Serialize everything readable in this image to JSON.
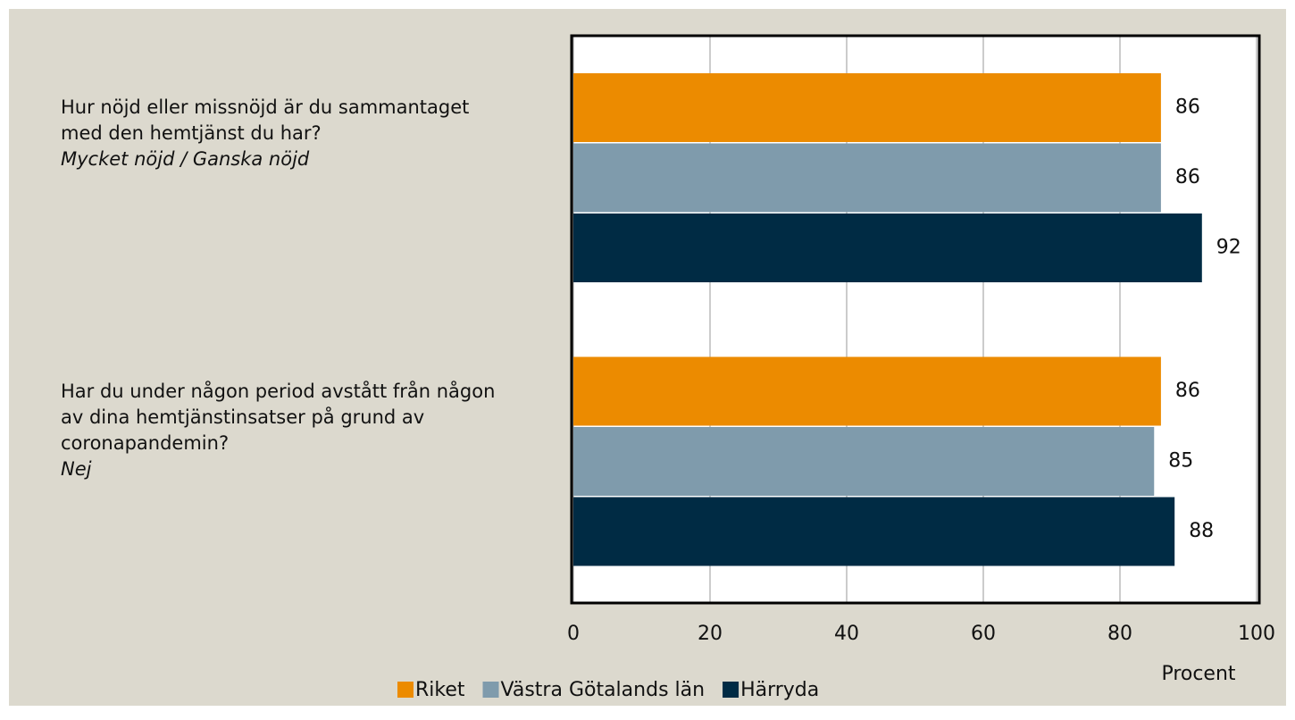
{
  "chart_data": {
    "type": "hbar",
    "categories": [
      "Hur nöjd eller missnöjd är du sammantaget med den hemtjänst du har?",
      "Har du under någon period avstått från någon av dina hemtjänstinsatser på grund av coronapandemin?"
    ],
    "category_notes": [
      "Mycket nöjd / Ganska nöjd",
      "Nej"
    ],
    "series": [
      {
        "name": "Riket",
        "color": "#ec8b00",
        "values": [
          86,
          86
        ]
      },
      {
        "name": "Västra Götalands län",
        "color": "#7f9bac",
        "values": [
          86,
          85
        ]
      },
      {
        "name": "Härryda",
        "color": "#002b44",
        "values": [
          92,
          88
        ]
      }
    ],
    "xlabel": "Procent",
    "xlim": [
      0,
      100
    ],
    "xticks": [
      0,
      20,
      40,
      60,
      80,
      100
    ],
    "grid": true
  }
}
